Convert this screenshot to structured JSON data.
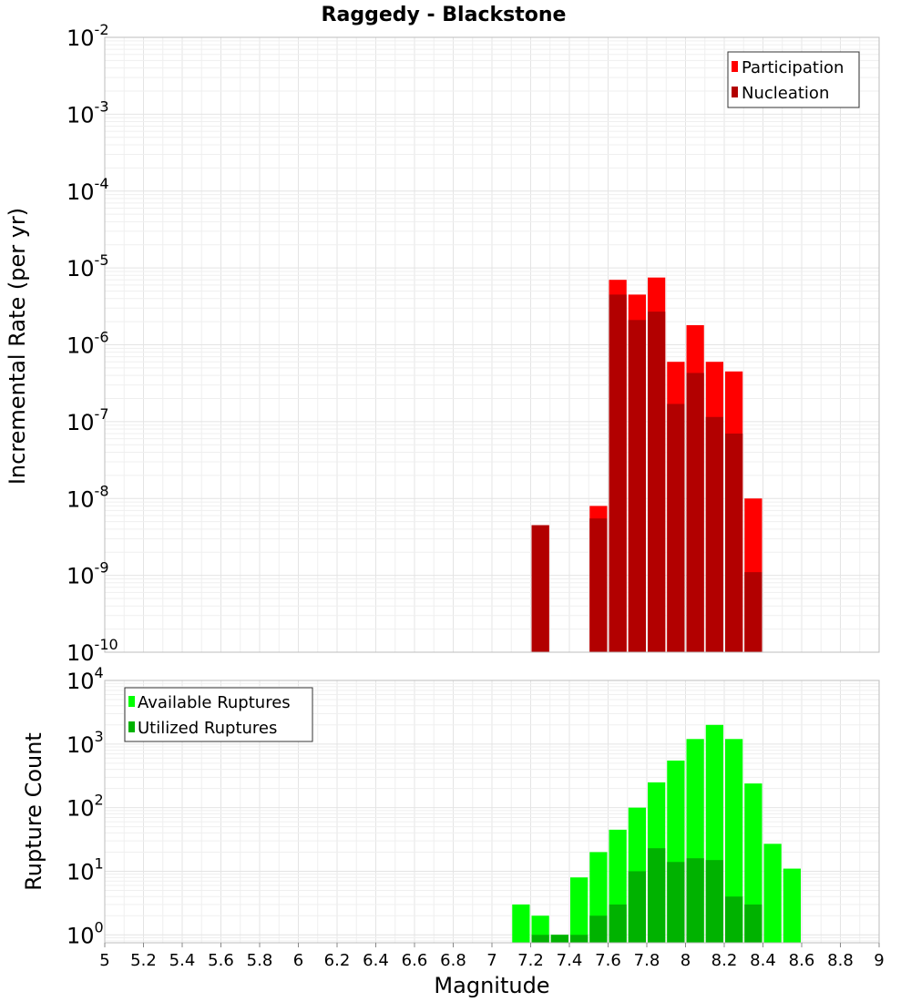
{
  "chart_data": [
    {
      "type": "bar",
      "title": "Raggedy - Blackstone",
      "ylabel": "Incremental Rate (per yr)",
      "xlabel": "",
      "xlim": [
        5,
        9
      ],
      "ylim": [
        1e-10,
        0.01
      ],
      "yscale": "log",
      "ytick_base": "10",
      "ytick_exponents": [
        "-10",
        "-9",
        "-8",
        "-7",
        "-6",
        "-5",
        "-4",
        "-3",
        "-2"
      ],
      "bin_width": 0.1,
      "legend": [
        "Participation",
        "Nucleation"
      ],
      "legend_position": "top-right",
      "series": [
        {
          "name": "Participation",
          "color": "#ff0000",
          "x": [
            7.25,
            7.55,
            7.65,
            7.75,
            7.85,
            7.95,
            8.05,
            8.15,
            8.25,
            8.35
          ],
          "values": [
            4.5e-09,
            8e-09,
            7e-06,
            4.5e-06,
            7.5e-06,
            6e-07,
            1.8e-06,
            6e-07,
            4.5e-07,
            1e-08
          ]
        },
        {
          "name": "Nucleation",
          "color": "#b20000",
          "x": [
            7.25,
            7.55,
            7.65,
            7.75,
            7.85,
            7.95,
            8.05,
            8.15,
            8.25,
            8.35
          ],
          "values": [
            4.5e-09,
            5.5e-09,
            4.5e-06,
            2.1e-06,
            2.7e-06,
            1.7e-07,
            4.3e-07,
            1.15e-07,
            7e-08,
            1.1e-09
          ]
        }
      ]
    },
    {
      "type": "bar",
      "title": "",
      "ylabel": "Rupture Count",
      "xlabel": "Magnitude",
      "xlim": [
        5,
        9
      ],
      "ylim": [
        0.75,
        10000
      ],
      "yscale": "log",
      "ytick_base": "10",
      "ytick_exponents": [
        "0",
        "1",
        "2",
        "3",
        "4"
      ],
      "xticks": [
        "5",
        "5.2",
        "5.4",
        "5.6",
        "5.8",
        "6",
        "6.2",
        "6.4",
        "6.6",
        "6.8",
        "7",
        "7.2",
        "7.4",
        "7.6",
        "7.8",
        "8",
        "8.2",
        "8.4",
        "8.6",
        "8.8",
        "9"
      ],
      "bin_width": 0.1,
      "legend": [
        "Available Ruptures",
        "Utilized Ruptures"
      ],
      "legend_position": "top-left",
      "series": [
        {
          "name": "Available Ruptures",
          "color": "#00ff00",
          "x": [
            7.15,
            7.25,
            7.35,
            7.45,
            7.55,
            7.65,
            7.75,
            7.85,
            7.95,
            8.05,
            8.15,
            8.25,
            8.35,
            8.45,
            8.55
          ],
          "values": [
            3,
            2,
            1,
            8,
            20,
            45,
            100,
            250,
            550,
            1200,
            2000,
            1200,
            240,
            27,
            11
          ]
        },
        {
          "name": "Utilized Ruptures",
          "color": "#00b200",
          "x": [
            7.25,
            7.35,
            7.45,
            7.55,
            7.65,
            7.75,
            7.85,
            7.95,
            8.05,
            8.15,
            8.25,
            8.35
          ],
          "values": [
            1,
            1,
            1,
            2,
            3,
            10,
            23,
            14,
            16,
            15,
            4,
            3
          ]
        }
      ]
    }
  ]
}
